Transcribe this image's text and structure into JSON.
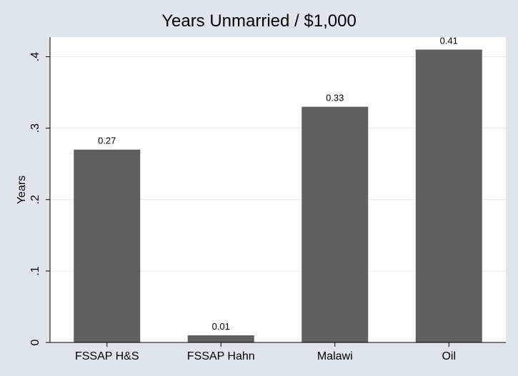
{
  "chart_data": {
    "type": "bar",
    "title": "Years Unmarried / $1,000",
    "xlabel": "",
    "ylabel": "Years",
    "categories": [
      "FSSAP H&S",
      "FSSAP Hahn",
      "Malawi",
      "Oil"
    ],
    "values": [
      0.27,
      0.01,
      0.33,
      0.41
    ],
    "data_labels": [
      "0.27",
      "0.01",
      "0.33",
      "0.41"
    ],
    "yticks": [
      0,
      0.1,
      0.2,
      0.3,
      0.4
    ],
    "ytick_labels": [
      "0",
      ".1",
      ".2",
      ".3",
      ".4"
    ],
    "ylim": [
      0,
      0.41
    ],
    "grid": true,
    "legend": "none",
    "colors": {
      "bar": "#5f5f5f",
      "plot_background": "#ffffff",
      "outer_background": "#dfe5ea",
      "grid": "#e6eaee",
      "axis": "#000000"
    }
  }
}
